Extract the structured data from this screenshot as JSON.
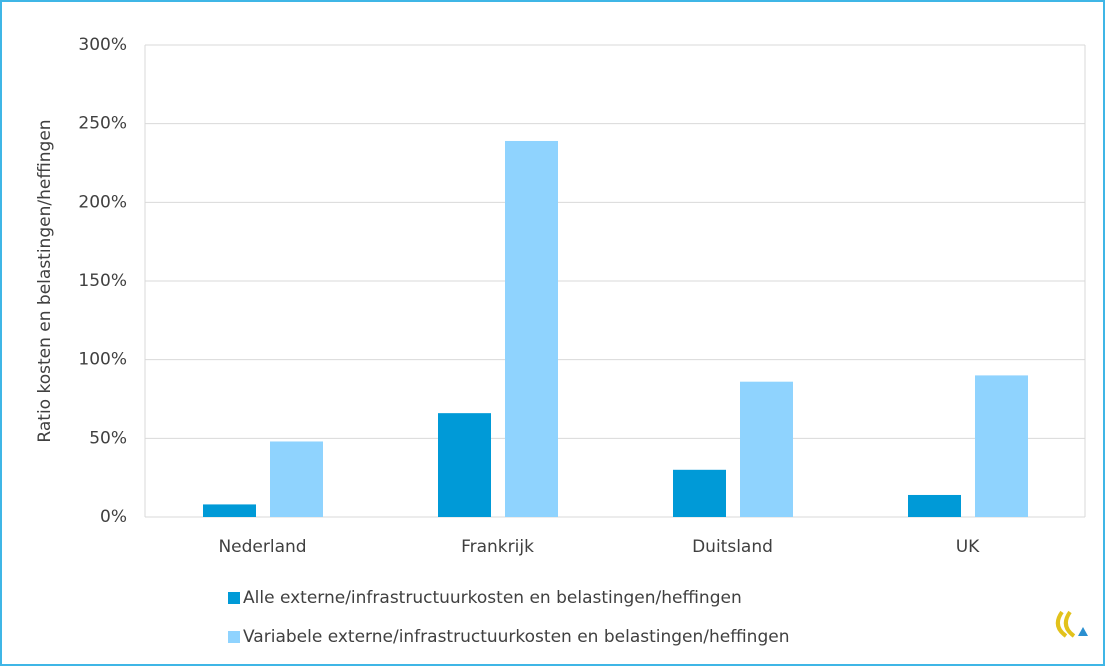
{
  "chart_data": {
    "type": "bar",
    "y_label": "Ratio kosten en belastingen/heffingen",
    "categories": [
      "Nederland",
      "Frankrijk",
      "Duitsland",
      "UK"
    ],
    "series": [
      {
        "name": "Alle externe/infrastructuurkosten en belastingen/heffingen",
        "color": "#009ad7",
        "values": [
          8,
          66,
          30,
          14
        ]
      },
      {
        "name": "Variabele externe/infrastructuurkosten en belastingen/heffingen",
        "color": "#8fd3fe",
        "values": [
          48,
          239,
          86,
          90
        ]
      }
    ],
    "ylim": [
      0,
      300
    ],
    "yticks": [
      {
        "value": 0,
        "label": "0%"
      },
      {
        "value": 50,
        "label": "50%"
      },
      {
        "value": 100,
        "label": "100%"
      },
      {
        "value": 150,
        "label": "150%"
      },
      {
        "value": 200,
        "label": "200%"
      },
      {
        "value": 250,
        "label": "250%"
      },
      {
        "value": 300,
        "label": "300%"
      }
    ],
    "grid": true,
    "legend": "bottom"
  }
}
